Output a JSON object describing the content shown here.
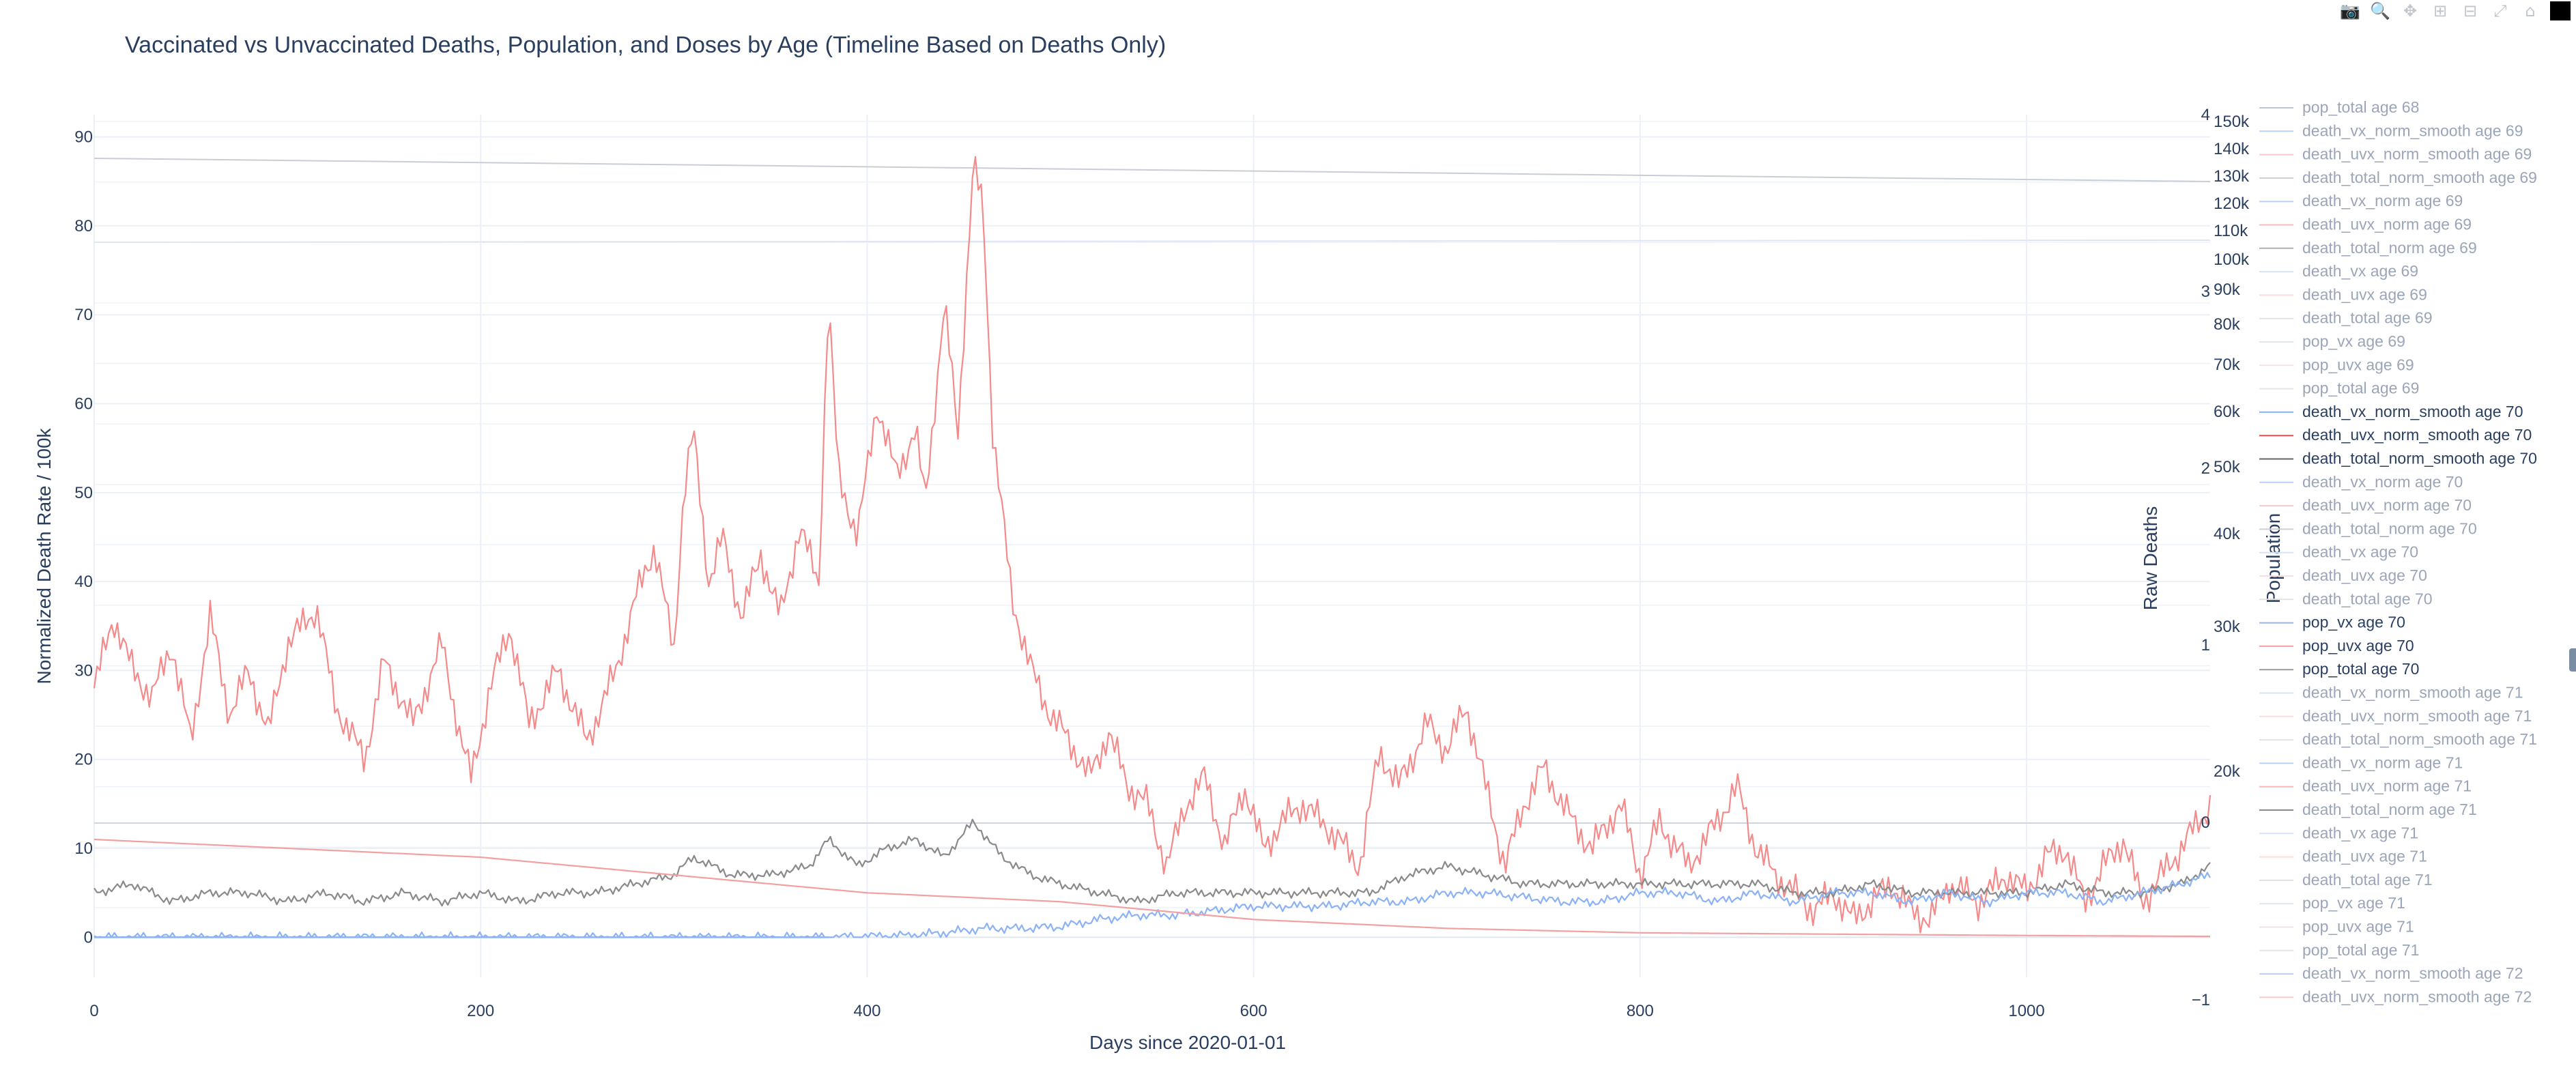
{
  "modebar": {
    "buttons": [
      {
        "name": "camera-icon",
        "glyph": "📷"
      },
      {
        "name": "zoom-icon",
        "glyph": "🔍"
      },
      {
        "name": "pan-icon",
        "glyph": "✥"
      },
      {
        "name": "zoom-in-icon",
        "glyph": "⊞"
      },
      {
        "name": "zoom-out-icon",
        "glyph": "⊟"
      },
      {
        "name": "autoscale-icon",
        "glyph": "⤢"
      },
      {
        "name": "reset-axes-icon",
        "glyph": "⌂"
      }
    ]
  },
  "chart_data": {
    "type": "line",
    "title": "Vaccinated vs Unvaccinated Deaths, Population, and Doses by Age (Timeline Based on Deaths Only)",
    "xlabel": "Days since 2020-01-01",
    "ylabel": "Normalized Death Rate / 100k",
    "y2label": "Raw Deaths",
    "y3label": "Population",
    "xlim": [
      0,
      1095
    ],
    "ylim": [
      -4.5,
      92.5
    ],
    "y2lim": [
      -1,
      4
    ],
    "y3_ticks": [
      "150k",
      "140k",
      "130k",
      "120k",
      "110k",
      "100k",
      "90k",
      "80k",
      "70k",
      "60k",
      "50k",
      "40k",
      "30k",
      "20k"
    ],
    "x_ticks": [
      0,
      200,
      400,
      600,
      800,
      1000
    ],
    "y_ticks": [
      0,
      10,
      20,
      30,
      40,
      50,
      60,
      70,
      80,
      90
    ],
    "y2_ticks": [
      -1,
      0,
      1,
      2,
      3,
      4
    ],
    "grid": true,
    "legend_position": "right",
    "colors": {
      "vx": "#4a8ff0",
      "uvx": "#f04a4a",
      "total": "#555555"
    },
    "series_description": [
      {
        "name": "death_uvx_norm_smooth age 70",
        "color": "#f58a8a",
        "keypoints": [
          [
            0,
            28
          ],
          [
            10,
            36
          ],
          [
            20,
            30
          ],
          [
            30,
            27
          ],
          [
            40,
            33
          ],
          [
            50,
            22
          ],
          [
            60,
            36
          ],
          [
            70,
            25
          ],
          [
            80,
            30
          ],
          [
            90,
            23
          ],
          [
            100,
            33
          ],
          [
            115,
            37
          ],
          [
            125,
            26
          ],
          [
            140,
            20
          ],
          [
            150,
            31
          ],
          [
            165,
            24
          ],
          [
            180,
            33
          ],
          [
            190,
            22
          ],
          [
            195,
            18
          ],
          [
            205,
            28
          ],
          [
            215,
            35
          ],
          [
            225,
            24
          ],
          [
            240,
            30
          ],
          [
            255,
            22
          ],
          [
            270,
            30
          ],
          [
            280,
            38
          ],
          [
            290,
            44
          ],
          [
            300,
            32
          ],
          [
            305,
            50
          ],
          [
            310,
            57
          ],
          [
            318,
            40
          ],
          [
            325,
            45
          ],
          [
            335,
            36
          ],
          [
            345,
            43
          ],
          [
            355,
            36
          ],
          [
            365,
            46
          ],
          [
            375,
            40
          ],
          [
            380,
            72
          ],
          [
            385,
            52
          ],
          [
            395,
            45
          ],
          [
            405,
            60
          ],
          [
            415,
            52
          ],
          [
            425,
            57
          ],
          [
            430,
            49
          ],
          [
            440,
            71
          ],
          [
            447,
            57
          ],
          [
            455,
            87
          ],
          [
            460,
            82
          ],
          [
            465,
            57
          ],
          [
            475,
            38
          ],
          [
            485,
            30
          ],
          [
            495,
            25
          ],
          [
            505,
            22
          ],
          [
            515,
            18
          ],
          [
            525,
            23
          ],
          [
            535,
            17
          ],
          [
            545,
            15
          ],
          [
            555,
            8
          ],
          [
            565,
            15
          ],
          [
            575,
            18
          ],
          [
            585,
            10
          ],
          [
            595,
            17
          ],
          [
            605,
            10
          ],
          [
            615,
            13
          ],
          [
            625,
            15
          ],
          [
            640,
            12
          ],
          [
            655,
            8
          ],
          [
            665,
            21
          ],
          [
            675,
            17
          ],
          [
            690,
            24
          ],
          [
            700,
            21
          ],
          [
            710,
            26
          ],
          [
            720,
            17
          ],
          [
            730,
            8
          ],
          [
            740,
            15
          ],
          [
            750,
            19
          ],
          [
            765,
            13
          ],
          [
            775,
            10
          ],
          [
            790,
            15
          ],
          [
            800,
            7
          ],
          [
            810,
            13
          ],
          [
            825,
            8
          ],
          [
            840,
            13
          ],
          [
            850,
            17
          ],
          [
            860,
            10
          ],
          [
            870,
            7
          ],
          [
            880,
            5
          ],
          [
            890,
            3
          ],
          [
            900,
            5
          ],
          [
            910,
            2
          ],
          [
            920,
            4
          ],
          [
            930,
            6
          ],
          [
            940,
            3
          ],
          [
            950,
            2
          ],
          [
            960,
            6
          ],
          [
            975,
            4
          ],
          [
            990,
            7
          ],
          [
            1000,
            5
          ],
          [
            1010,
            9
          ],
          [
            1020,
            10
          ],
          [
            1030,
            4
          ],
          [
            1040,
            8
          ],
          [
            1050,
            11
          ],
          [
            1060,
            4
          ],
          [
            1070,
            7
          ],
          [
            1080,
            10
          ],
          [
            1095,
            15
          ]
        ]
      },
      {
        "name": "death_total_norm_smooth age 70",
        "color": "#8a8a8a",
        "keypoints": [
          [
            0,
            5
          ],
          [
            20,
            6
          ],
          [
            40,
            4
          ],
          [
            60,
            5
          ],
          [
            80,
            5
          ],
          [
            100,
            4
          ],
          [
            120,
            5
          ],
          [
            140,
            4
          ],
          [
            160,
            5
          ],
          [
            180,
            4
          ],
          [
            200,
            5
          ],
          [
            220,
            4
          ],
          [
            240,
            5
          ],
          [
            260,
            5
          ],
          [
            280,
            6
          ],
          [
            300,
            7
          ],
          [
            310,
            9
          ],
          [
            330,
            7
          ],
          [
            350,
            7
          ],
          [
            370,
            8
          ],
          [
            380,
            11
          ],
          [
            395,
            8
          ],
          [
            410,
            10
          ],
          [
            425,
            11
          ],
          [
            440,
            9
          ],
          [
            455,
            13
          ],
          [
            470,
            9
          ],
          [
            485,
            7
          ],
          [
            500,
            6
          ],
          [
            520,
            5
          ],
          [
            540,
            4
          ],
          [
            560,
            5
          ],
          [
            580,
            5
          ],
          [
            600,
            5
          ],
          [
            620,
            5
          ],
          [
            640,
            5
          ],
          [
            660,
            5
          ],
          [
            680,
            7
          ],
          [
            700,
            8
          ],
          [
            720,
            7
          ],
          [
            740,
            6
          ],
          [
            760,
            6
          ],
          [
            780,
            6
          ],
          [
            800,
            6
          ],
          [
            820,
            6
          ],
          [
            840,
            6
          ],
          [
            860,
            6
          ],
          [
            880,
            5
          ],
          [
            900,
            5
          ],
          [
            920,
            6
          ],
          [
            940,
            5
          ],
          [
            960,
            5
          ],
          [
            980,
            5
          ],
          [
            1000,
            5
          ],
          [
            1020,
            6
          ],
          [
            1040,
            5
          ],
          [
            1060,
            5
          ],
          [
            1080,
            6
          ],
          [
            1095,
            8
          ]
        ]
      },
      {
        "name": "death_vx_norm_smooth age 70",
        "color": "#8ab2f5",
        "keypoints": [
          [
            0,
            0
          ],
          [
            380,
            0
          ],
          [
            400,
            0.1
          ],
          [
            420,
            0.2
          ],
          [
            440,
            0.5
          ],
          [
            460,
            1
          ],
          [
            480,
            1
          ],
          [
            500,
            1.2
          ],
          [
            520,
            2
          ],
          [
            540,
            2.5
          ],
          [
            560,
            2.5
          ],
          [
            580,
            3
          ],
          [
            600,
            3.5
          ],
          [
            620,
            3.5
          ],
          [
            640,
            3.5
          ],
          [
            660,
            4
          ],
          [
            680,
            4
          ],
          [
            700,
            5
          ],
          [
            720,
            5
          ],
          [
            740,
            4.5
          ],
          [
            760,
            4
          ],
          [
            780,
            4
          ],
          [
            800,
            5
          ],
          [
            820,
            5
          ],
          [
            840,
            4
          ],
          [
            860,
            5
          ],
          [
            880,
            4
          ],
          [
            900,
            5
          ],
          [
            920,
            5
          ],
          [
            940,
            4
          ],
          [
            960,
            5
          ],
          [
            980,
            4
          ],
          [
            1000,
            5
          ],
          [
            1020,
            5
          ],
          [
            1040,
            4
          ],
          [
            1060,
            5
          ],
          [
            1080,
            6
          ],
          [
            1095,
            7
          ]
        ]
      },
      {
        "name": "pop_uvx age 70",
        "color": "#f2a0a0",
        "keypoints": [
          [
            0,
            11
          ],
          [
            200,
            9
          ],
          [
            400,
            5
          ],
          [
            500,
            4
          ],
          [
            600,
            2
          ],
          [
            700,
            1
          ],
          [
            800,
            0.5
          ],
          [
            1000,
            0.2
          ],
          [
            1095,
            0.1
          ]
        ]
      }
    ],
    "legend_items": [
      {
        "label": "pop_total age 68",
        "color": "#bcc7d6",
        "active": false
      },
      {
        "label": "death_vx_norm_smooth age 69",
        "color": "#b9d3f8",
        "active": false
      },
      {
        "label": "death_uvx_norm_smooth age 69",
        "color": "#f8c9c9",
        "active": false
      },
      {
        "label": "death_total_norm_smooth age 69",
        "color": "#cfcfcf",
        "active": false
      },
      {
        "label": "death_vx_norm age 69",
        "color": "#b9d3f8",
        "active": false
      },
      {
        "label": "death_uvx_norm age 69",
        "color": "#f8b9b9",
        "active": false
      },
      {
        "label": "death_total_norm age 69",
        "color": "#b0b0b0",
        "active": false
      },
      {
        "label": "death_vx age 69",
        "color": "#d6e4f8",
        "active": false
      },
      {
        "label": "death_uvx age 69",
        "color": "#f8dede",
        "active": false
      },
      {
        "label": "death_total age 69",
        "color": "#e2e2e2",
        "active": false
      },
      {
        "label": "pop_vx age 69",
        "color": "#dfe6ef",
        "active": false
      },
      {
        "label": "pop_uvx age 69",
        "color": "#f1e4e4",
        "active": false
      },
      {
        "label": "pop_total age 69",
        "color": "#e6e6e6",
        "active": false
      },
      {
        "label": "death_vx_norm_smooth age 70",
        "color": "#8ab2f5",
        "active": true
      },
      {
        "label": "death_uvx_norm_smooth age 70",
        "color": "#f04a4a",
        "active": true
      },
      {
        "label": "death_total_norm_smooth age 70",
        "color": "#666666",
        "active": true
      },
      {
        "label": "death_vx_norm age 70",
        "color": "#b9d3f8",
        "active": false
      },
      {
        "label": "death_uvx_norm age 70",
        "color": "#f8c9c9",
        "active": false
      },
      {
        "label": "death_total_norm age 70",
        "color": "#cfcfcf",
        "active": false
      },
      {
        "label": "death_vx age 70",
        "color": "#d6e4f8",
        "active": false
      },
      {
        "label": "death_uvx age 70",
        "color": "#f8dede",
        "active": false
      },
      {
        "label": "death_total age 70",
        "color": "#e2e2e2",
        "active": false
      },
      {
        "label": "pop_vx age 70",
        "color": "#9bb8de",
        "active": true
      },
      {
        "label": "pop_uvx age 70",
        "color": "#f2a0a0",
        "active": true
      },
      {
        "label": "pop_total age 70",
        "color": "#9a9a9a",
        "active": true
      },
      {
        "label": "death_vx_norm_smooth age 71",
        "color": "#d6e4f8",
        "active": false
      },
      {
        "label": "death_uvx_norm_smooth age 71",
        "color": "#f8dede",
        "active": false
      },
      {
        "label": "death_total_norm_smooth age 71",
        "color": "#e2e2e2",
        "active": false
      },
      {
        "label": "death_vx_norm age 71",
        "color": "#b9d3f8",
        "active": false
      },
      {
        "label": "death_uvx_norm age 71",
        "color": "#f8b9b9",
        "active": false
      },
      {
        "label": "death_total_norm age 71",
        "color": "#8a8a8a",
        "active": false
      },
      {
        "label": "death_vx age 71",
        "color": "#d6e4f8",
        "active": false
      },
      {
        "label": "death_uvx age 71",
        "color": "#f8dede",
        "active": false
      },
      {
        "label": "death_total age 71",
        "color": "#e2e2e2",
        "active": false
      },
      {
        "label": "pop_vx age 71",
        "color": "#dfe6ef",
        "active": false
      },
      {
        "label": "pop_uvx age 71",
        "color": "#f1e4e4",
        "active": false
      },
      {
        "label": "pop_total age 71",
        "color": "#e6e6e6",
        "active": false
      },
      {
        "label": "death_vx_norm_smooth age 72",
        "color": "#b9d3f8",
        "active": false
      },
      {
        "label": "death_uvx_norm_smooth age 72",
        "color": "#f8c9c9",
        "active": false
      }
    ]
  }
}
